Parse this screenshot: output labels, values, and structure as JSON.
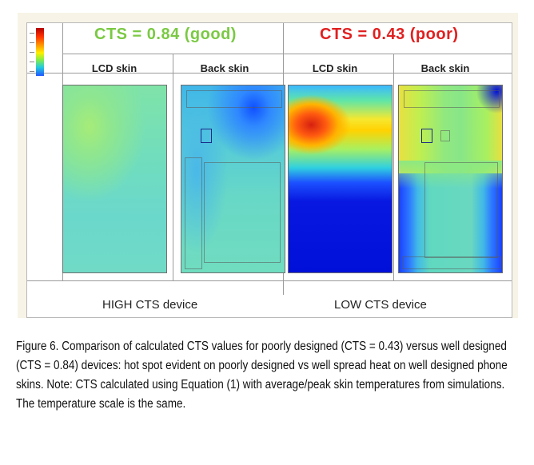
{
  "figure": {
    "left_header": "CTS = 0.84 (good)",
    "right_header": "CTS = 0.43 (poor)",
    "columns": [
      "LCD skin",
      "Back skin",
      "LCD skin",
      "Back skin"
    ],
    "left_device_label": "HIGH CTS device",
    "right_device_label": "LOW CTS device",
    "colors": {
      "good": "#7ac943",
      "poor": "#e02020"
    }
  },
  "caption": "Figure 6. Comparison of calculated CTS values for poorly designed (CTS = 0.43) versus well designed (CTS = 0.84) devices: hot spot evident on poorly designed vs well spread heat on well designed phone skins. Note: CTS calculated using Equation (1) with average/peak skin temperatures from simulations. The temperature scale is the same."
}
